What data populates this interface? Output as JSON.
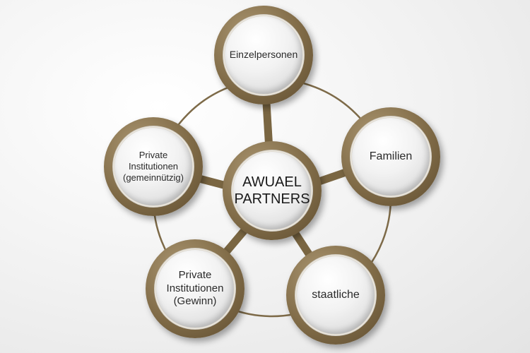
{
  "diagram": {
    "center": {
      "label": "AWUAEL\nPARTNERS"
    },
    "nodes": [
      {
        "id": "einzelpersonen",
        "label": "Einzelpersonen"
      },
      {
        "id": "familien",
        "label": "Familien"
      },
      {
        "id": "staatliche",
        "label": "staatliche"
      },
      {
        "id": "private-gewinn",
        "label": "Private\nInstitutionen\n(Gewinn)"
      },
      {
        "id": "private-gemeinnuetzig",
        "label": "Private\nInstitutionen\n(gemeinnützig)"
      }
    ],
    "colors": {
      "ring": "#7d6a48",
      "spoke": "#7a6642"
    }
  }
}
